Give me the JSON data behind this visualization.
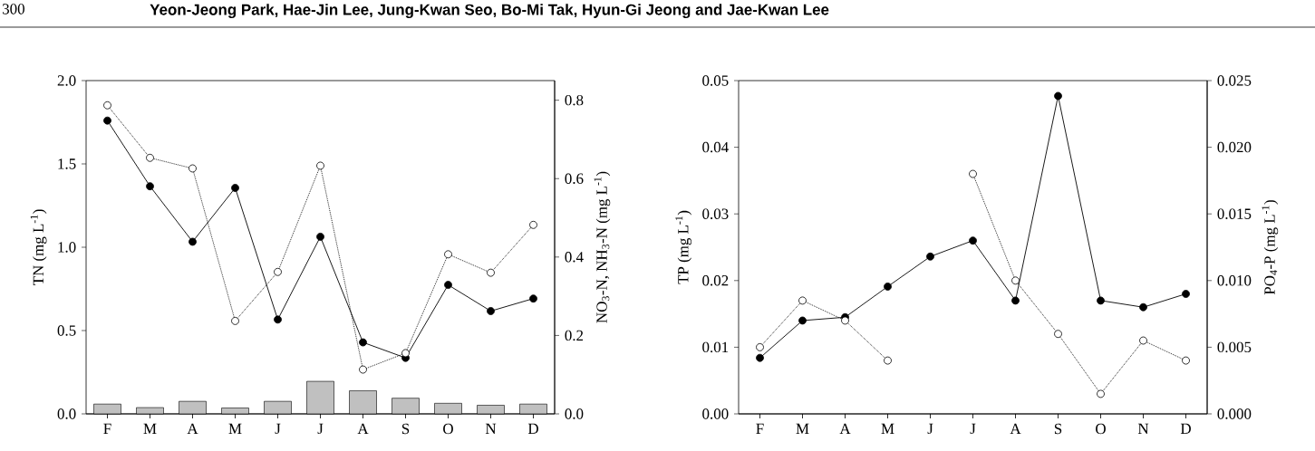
{
  "chart_data": [
    {
      "type": "line",
      "ylabel": "TN (mg L$^{-1}$)",
      "y2label": "NO$_{3}$-N, NH$_{3}$-N (mg L$^{-1}$)",
      "annotations": [
        "300",
        "Yeon-Jeong Park, Hae-Jin Lee, Jung-Kwan Seo, Bo-Mi Tak, Hyun-Gi Jeong and Jae-Kwan Lee"
      ],
      "categories": [
        "F",
        "M",
        "A",
        "M",
        "J",
        "J",
        "A",
        "S",
        "O",
        "N",
        "D"
      ],
      "marker": "circle",
      "ylim": [
        0,
        2.0
      ],
      "yticks": [
        {
          "value": 0,
          "label": "0.0"
        },
        {
          "value": 0.5,
          "label": "0.5"
        },
        {
          "value": 1.0,
          "label": "1.0"
        },
        {
          "value": 1.5,
          "label": "1.5"
        },
        {
          "value": 2.0,
          "label": "2.0"
        }
      ],
      "y2lim": [
        0,
        0.85
      ],
      "y2ticks": [
        {
          "value": 0,
          "label": "0.0"
        },
        {
          "value": 0.2,
          "label": "0.2"
        },
        {
          "value": 0.4,
          "label": "0.4"
        },
        {
          "value": 0.6,
          "label": "0.6"
        },
        {
          "value": 0.8,
          "label": "0.8"
        }
      ],
      "series": [
        {
          "type": "bar",
          "axis": "y2",
          "color": "#c0c0c0",
          "values": [
            0.025,
            0.016,
            0.032,
            0.015,
            0.032,
            0.083,
            0.059,
            0.04,
            0.027,
            0.022,
            0.025
          ]
        },
        {
          "axis": "y2",
          "color": "#000000",
          "line_style": "dotted",
          "values": [
            0.787,
            0.653,
            0.626,
            0.237,
            0.362,
            0.633,
            0.113,
            0.155,
            0.407,
            0.36,
            0.482
          ]
        },
        {
          "color": "#000000",
          "line_style": "solid",
          "values": [
            1.76,
            1.366,
            1.033,
            1.356,
            0.566,
            1.063,
            0.429,
            0.336,
            0.774,
            0.617,
            0.692
          ]
        }
      ]
    },
    {
      "type": "line",
      "ylabel": "TP (mg L$^{-1}$)",
      "y2label": "PO$_{4}$-P (mg L$^{-1}$)",
      "categories": [
        "F",
        "M",
        "A",
        "M",
        "J",
        "J",
        "A",
        "S",
        "O",
        "N",
        "D"
      ],
      "marker": "circle",
      "ylim": [
        0,
        0.05
      ],
      "yticks": [
        {
          "value": 0,
          "label": "0.00"
        },
        {
          "value": 0.01,
          "label": "0.01"
        },
        {
          "value": 0.02,
          "label": "0.02"
        },
        {
          "value": 0.03,
          "label": "0.03"
        },
        {
          "value": 0.04,
          "label": "0.04"
        },
        {
          "value": 0.05,
          "label": "0.05"
        }
      ],
      "y2lim": [
        0,
        0.025
      ],
      "y2ticks": [
        {
          "value": 0,
          "label": "0.000"
        },
        {
          "value": 0.005,
          "label": "0.005"
        },
        {
          "value": 0.01,
          "label": "0.010"
        },
        {
          "value": 0.015,
          "label": "0.015"
        },
        {
          "value": 0.02,
          "label": "0.020"
        },
        {
          "value": 0.025,
          "label": "0.025"
        }
      ],
      "series": [
        {
          "axis": "y2",
          "color": "#000000",
          "line_style": "dotted",
          "values": [
            0.005,
            0.0085,
            0.007,
            0.004,
            null,
            0.018,
            0.01,
            0.006,
            0.0015,
            0.0055,
            0.004
          ]
        },
        {
          "color": "#000000",
          "line_style": "solid",
          "values": [
            0.0084,
            0.014,
            0.0145,
            0.0191,
            0.0236,
            0.026,
            0.017,
            0.0477,
            0.017,
            0.016,
            0.018
          ]
        }
      ]
    }
  ]
}
